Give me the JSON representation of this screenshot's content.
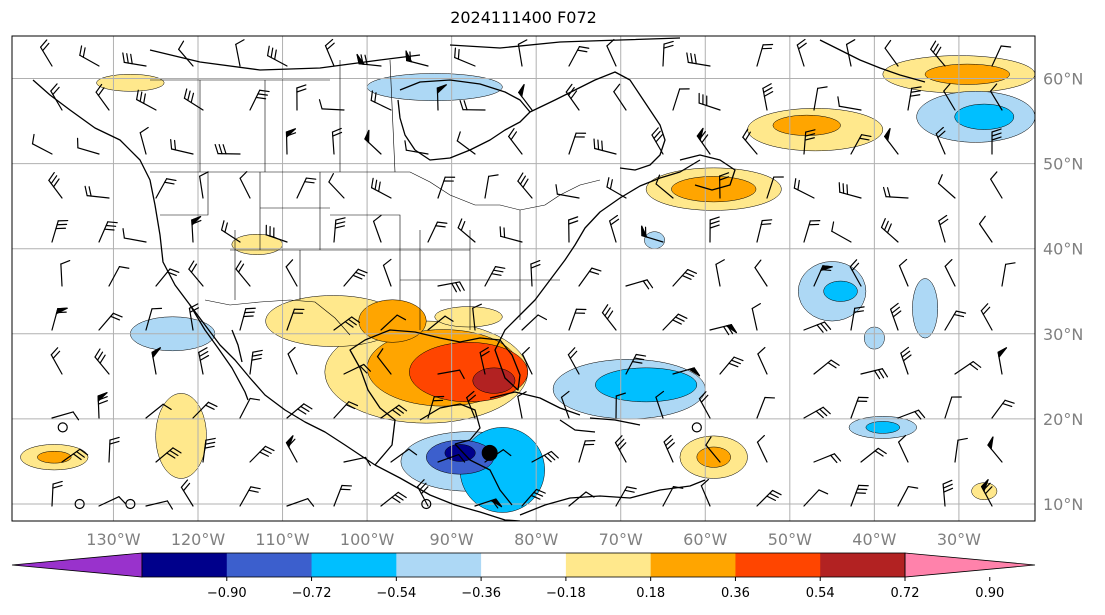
{
  "title": "2024111400 F072",
  "map": {
    "lon_range": [
      -142,
      -21
    ],
    "lat_range": [
      8,
      65
    ],
    "lon_ticks": [
      {
        "value": -130,
        "label": "130°W"
      },
      {
        "value": -120,
        "label": "120°W"
      },
      {
        "value": -110,
        "label": "110°W"
      },
      {
        "value": -100,
        "label": "100°W"
      },
      {
        "value": -90,
        "label": "90°W"
      },
      {
        "value": -80,
        "label": "80°W"
      },
      {
        "value": -70,
        "label": "70°W"
      },
      {
        "value": -60,
        "label": "60°W"
      },
      {
        "value": -50,
        "label": "50°W"
      },
      {
        "value": -40,
        "label": "40°W"
      },
      {
        "value": -30,
        "label": "30°W"
      }
    ],
    "lat_ticks": [
      {
        "value": 10,
        "label": "10°N"
      },
      {
        "value": 20,
        "label": "20°N"
      },
      {
        "value": 30,
        "label": "30°N"
      },
      {
        "value": 40,
        "label": "40°N"
      },
      {
        "value": 50,
        "label": "50°N"
      },
      {
        "value": 60,
        "label": "60°N"
      }
    ],
    "grid": true,
    "storm_center": {
      "lon": -85.5,
      "lat": 16.0
    }
  },
  "colorbar": {
    "colors": [
      "#9932cc",
      "#00008b",
      "#3c5fcd",
      "#00bfff",
      "#add8f5",
      "#ffffff",
      "#ffe88c",
      "#ffa500",
      "#ff4500",
      "#b22222",
      "#ff82ab"
    ],
    "tick_labels": [
      "−0.90",
      "−0.72",
      "−0.54",
      "−0.36",
      "−0.18",
      "0.18",
      "0.36",
      "0.54",
      "0.72",
      "0.90"
    ],
    "extend": "both"
  },
  "anomaly_regions": [
    {
      "lon": -93,
      "lat": 25.5,
      "rx": 12,
      "ry": 6,
      "level": 1
    },
    {
      "lon": -91,
      "lat": 26,
      "rx": 9,
      "ry": 4.5,
      "level": 2
    },
    {
      "lon": -88,
      "lat": 25.5,
      "rx": 7,
      "ry": 3.5,
      "level": 3
    },
    {
      "lon": -85,
      "lat": 24.5,
      "rx": 2.5,
      "ry": 1.5,
      "level": 4
    },
    {
      "lon": -104,
      "lat": 31.5,
      "rx": 8,
      "ry": 3,
      "level": 1
    },
    {
      "lon": -97,
      "lat": 31.5,
      "rx": 4,
      "ry": 2.5,
      "level": 2
    },
    {
      "lon": -88,
      "lat": 32,
      "rx": 4,
      "ry": 1.2,
      "level": 1
    },
    {
      "lon": -113,
      "lat": 40.5,
      "rx": 3,
      "ry": 1.2,
      "level": 1
    },
    {
      "lon": -59,
      "lat": 47,
      "rx": 8,
      "ry": 2.5,
      "level": 1
    },
    {
      "lon": -59,
      "lat": 47,
      "rx": 5,
      "ry": 1.5,
      "level": 2
    },
    {
      "lon": -47,
      "lat": 54,
      "rx": 8,
      "ry": 2.5,
      "level": 1
    },
    {
      "lon": -48,
      "lat": 54.5,
      "rx": 4,
      "ry": 1.2,
      "level": 2
    },
    {
      "lon": -30,
      "lat": 60.5,
      "rx": 9,
      "ry": 2.2,
      "level": 1
    },
    {
      "lon": -29,
      "lat": 60.5,
      "rx": 5,
      "ry": 1.2,
      "level": 2
    },
    {
      "lon": -128,
      "lat": 59.5,
      "rx": 4,
      "ry": 1,
      "level": 1
    },
    {
      "lon": -59,
      "lat": 15.5,
      "rx": 4,
      "ry": 2.5,
      "level": 1
    },
    {
      "lon": -59,
      "lat": 15.5,
      "rx": 2,
      "ry": 1.2,
      "level": 2
    },
    {
      "lon": -122,
      "lat": 18,
      "rx": 3,
      "ry": 5,
      "level": 1
    },
    {
      "lon": -137,
      "lat": 15.5,
      "rx": 4,
      "ry": 1.5,
      "level": 1
    },
    {
      "lon": -137,
      "lat": 15.5,
      "rx": 2,
      "ry": 0.7,
      "level": 2
    },
    {
      "lon": -27,
      "lat": 11.5,
      "rx": 1.5,
      "ry": 1,
      "level": 1
    },
    {
      "lon": -88,
      "lat": 15,
      "rx": 8,
      "ry": 3.5,
      "level": -1
    },
    {
      "lon": -84,
      "lat": 14,
      "rx": 5,
      "ry": 5,
      "level": -2
    },
    {
      "lon": -89,
      "lat": 15.5,
      "rx": 4,
      "ry": 2,
      "level": -3
    },
    {
      "lon": -89,
      "lat": 16,
      "rx": 1.8,
      "ry": 1,
      "level": -4
    },
    {
      "lon": -69,
      "lat": 23.5,
      "rx": 9,
      "ry": 3.5,
      "level": -1
    },
    {
      "lon": -67,
      "lat": 24,
      "rx": 6,
      "ry": 2,
      "level": -2
    },
    {
      "lon": -45,
      "lat": 35,
      "rx": 4,
      "ry": 3.5,
      "level": -1
    },
    {
      "lon": -44,
      "lat": 35,
      "rx": 2,
      "ry": 1.2,
      "level": -2
    },
    {
      "lon": -34,
      "lat": 33,
      "rx": 1.5,
      "ry": 3.5,
      "level": -1
    },
    {
      "lon": -28,
      "lat": 55.5,
      "rx": 7,
      "ry": 3,
      "level": -1
    },
    {
      "lon": -27,
      "lat": 55.5,
      "rx": 3.5,
      "ry": 1.5,
      "level": -2
    },
    {
      "lon": -92,
      "lat": 59,
      "rx": 8,
      "ry": 1.6,
      "level": -1
    },
    {
      "lon": -123,
      "lat": 30,
      "rx": 5,
      "ry": 2,
      "level": -1
    },
    {
      "lon": -39,
      "lat": 19,
      "rx": 4,
      "ry": 1.3,
      "level": -1
    },
    {
      "lon": -39,
      "lat": 19,
      "rx": 2,
      "ry": 0.7,
      "level": -2
    },
    {
      "lon": -66,
      "lat": 41,
      "rx": 1.2,
      "ry": 1,
      "level": -1
    },
    {
      "lon": -40,
      "lat": 29.5,
      "rx": 1.2,
      "ry": 1.3,
      "level": -1
    }
  ]
}
